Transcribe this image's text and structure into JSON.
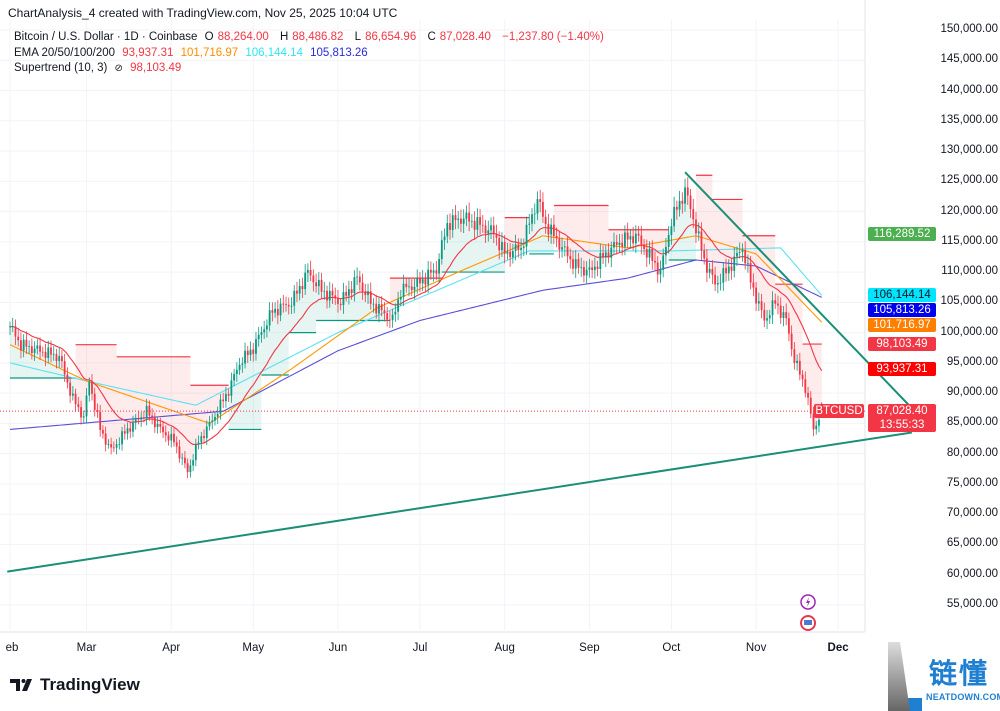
{
  "header": {
    "title": "ChartAnalysis_4 created with TradingView.com, Nov 25, 2025 10:04 UTC"
  },
  "legend": {
    "symbol": "Bitcoin / U.S. Dollar · 1D · Coinbase",
    "open_label": "O",
    "open": "88,264.00",
    "high_label": "H",
    "high": "88,486.82",
    "low_label": "L",
    "low": "86,654.96",
    "close_label": "C",
    "close": "87,028.40",
    "change": "−1,237.80 (−1.40%)",
    "ema_label": "EMA 20/50/100/200",
    "ema20": "93,937.31",
    "ema50": "101,716.97",
    "ema100": "106,144.14",
    "ema200": "105,813.26",
    "supertrend_label": "Supertrend (10, 3)",
    "supertrend_icon": "hidden-eye-icon",
    "supertrend": "98,103.49"
  },
  "price_axis": {
    "ticks": [
      "150,000.00",
      "145,000.00",
      "140,000.00",
      "135,000.00",
      "130,000.00",
      "125,000.00",
      "120,000.00",
      "115,000.00",
      "110,000.00",
      "105,000.00",
      "100,000.00",
      "95,000.00",
      "90,000.00",
      "85,000.00",
      "80,000.00",
      "75,000.00",
      "70,000.00",
      "65,000.00",
      "60,000.00",
      "55,000.00"
    ],
    "tags": [
      {
        "label": "116,289.52",
        "value": 116289.52,
        "color": "#4caf50"
      },
      {
        "label": "106,144.14",
        "value": 106144.14,
        "color": "#00e5ff",
        "text": "#131722"
      },
      {
        "label": "105,813.26",
        "value": 105813.26,
        "color": "#0000ee"
      },
      {
        "label": "101,716.97",
        "value": 101716.97,
        "color": "#ff7f00"
      },
      {
        "label": "98,103.49",
        "value": 98103.49,
        "color": "#f23645"
      },
      {
        "label": "93,937.31",
        "value": 93937.31,
        "color": "#ff0000"
      }
    ],
    "last": {
      "symbol": "BTCUSD",
      "price": "87,028.40",
      "value": 87028.4,
      "countdown": "13:55:33",
      "color": "#f23645"
    }
  },
  "time_axis": {
    "months": [
      {
        "label": "eb",
        "date": "2025-02-01"
      },
      {
        "label": "Mar",
        "date": "2025-03-01"
      },
      {
        "label": "Apr",
        "date": "2025-04-01"
      },
      {
        "label": "May",
        "date": "2025-05-01"
      },
      {
        "label": "Jun",
        "date": "2025-06-01"
      },
      {
        "label": "Jul",
        "date": "2025-07-01"
      },
      {
        "label": "Aug",
        "date": "2025-08-01"
      },
      {
        "label": "Sep",
        "date": "2025-09-01"
      },
      {
        "label": "Oct",
        "date": "2025-10-01"
      },
      {
        "label": "Nov",
        "date": "2025-11-01"
      },
      {
        "label": "Dec",
        "date": "2025-12-01"
      }
    ]
  },
  "footer": {
    "brand": "TradingView",
    "brand_icon": "tradingview-logo-icon"
  },
  "watermark": {
    "text": "链懂",
    "sub": "NEATDOWN.COM"
  },
  "event_icons": [
    "lightning-event-icon",
    "us-flag-event-icon"
  ],
  "colors": {
    "up": "#089981",
    "down": "#f23645",
    "ema20": "#f23645",
    "ema50": "#ff9800",
    "ema100": "#5ce1f0",
    "ema200": "#5b4fd6",
    "trend": "#1a8f75"
  },
  "chart_data": {
    "type": "candlestick",
    "symbol": "BTCUSD",
    "interval": "1D",
    "ylim": [
      52000,
      152000
    ],
    "closes": [
      [
        "2025-02-01",
        101000
      ],
      [
        "2025-02-05",
        98000
      ],
      [
        "2025-02-12",
        97000
      ],
      [
        "2025-02-19",
        96000
      ],
      [
        "2025-02-24",
        89000
      ],
      [
        "2025-02-28",
        86000
      ],
      [
        "2025-03-02",
        92000
      ],
      [
        "2025-03-06",
        84000
      ],
      [
        "2025-03-10",
        80500
      ],
      [
        "2025-03-16",
        84000
      ],
      [
        "2025-03-23",
        87000
      ],
      [
        "2025-03-28",
        84000
      ],
      [
        "2025-04-02",
        82000
      ],
      [
        "2025-04-07",
        77000
      ],
      [
        "2025-04-11",
        82000
      ],
      [
        "2025-04-16",
        85500
      ],
      [
        "2025-04-22",
        90500
      ],
      [
        "2025-04-26",
        95000
      ],
      [
        "2025-05-01",
        97500
      ],
      [
        "2025-05-08",
        103500
      ],
      [
        "2025-05-15",
        105000
      ],
      [
        "2025-05-21",
        110000
      ],
      [
        "2025-05-26",
        107000
      ],
      [
        "2025-06-02",
        105000
      ],
      [
        "2025-06-08",
        109000
      ],
      [
        "2025-06-13",
        105000
      ],
      [
        "2025-06-21",
        102000
      ],
      [
        "2025-06-24",
        107000
      ],
      [
        "2025-06-30",
        108000
      ],
      [
        "2025-07-07",
        110500
      ],
      [
        "2025-07-11",
        118000
      ],
      [
        "2025-07-17",
        119000
      ],
      [
        "2025-07-22",
        118000
      ],
      [
        "2025-07-28",
        116500
      ],
      [
        "2025-08-01",
        113000
      ],
      [
        "2025-08-07",
        114000
      ],
      [
        "2025-08-13",
        122000
      ],
      [
        "2025-08-16",
        118000
      ],
      [
        "2025-08-22",
        114000
      ],
      [
        "2025-08-27",
        111000
      ],
      [
        "2025-09-01",
        110000
      ],
      [
        "2025-09-07",
        113000
      ],
      [
        "2025-09-12",
        115000
      ],
      [
        "2025-09-18",
        116000
      ],
      [
        "2025-09-24",
        112000
      ],
      [
        "2025-09-27",
        110000
      ],
      [
        "2025-10-01",
        118500
      ],
      [
        "2025-10-06",
        123500
      ],
      [
        "2025-10-09",
        119000
      ],
      [
        "2025-10-13",
        112000
      ],
      [
        "2025-10-17",
        108000
      ],
      [
        "2025-10-21",
        110000
      ],
      [
        "2025-10-27",
        114000
      ],
      [
        "2025-10-30",
        108500
      ],
      [
        "2025-11-04",
        102000
      ],
      [
        "2025-11-08",
        105000
      ],
      [
        "2025-11-12",
        102000
      ],
      [
        "2025-11-15",
        95500
      ],
      [
        "2025-11-19",
        91000
      ],
      [
        "2025-11-22",
        84000
      ],
      [
        "2025-11-25",
        87028.4
      ]
    ],
    "last_candle": {
      "date": "2025-11-25",
      "open": 88264.0,
      "high": 88486.82,
      "low": 86654.96,
      "close": 87028.4
    },
    "ema50": [
      [
        "2025-02-01",
        98000
      ],
      [
        "2025-03-01",
        92000
      ],
      [
        "2025-04-15",
        85000
      ],
      [
        "2025-05-15",
        94000
      ],
      [
        "2025-06-15",
        104000
      ],
      [
        "2025-07-15",
        110000
      ],
      [
        "2025-08-15",
        116000
      ],
      [
        "2025-09-15",
        114000
      ],
      [
        "2025-10-10",
        116000
      ],
      [
        "2025-11-01",
        113000
      ],
      [
        "2025-11-25",
        101716.97
      ]
    ],
    "ema100": [
      [
        "2025-02-01",
        95000
      ],
      [
        "2025-03-01",
        92000
      ],
      [
        "2025-04-10",
        88000
      ],
      [
        "2025-06-01",
        100000
      ],
      [
        "2025-08-10",
        113500
      ],
      [
        "2025-10-01",
        113500
      ],
      [
        "2025-11-10",
        114000
      ],
      [
        "2025-11-25",
        106144.14
      ]
    ],
    "ema200": [
      [
        "2025-02-01",
        84000
      ],
      [
        "2025-04-20",
        87000
      ],
      [
        "2025-06-01",
        97000
      ],
      [
        "2025-07-01",
        102000
      ],
      [
        "2025-08-15",
        107000
      ],
      [
        "2025-09-15",
        109000
      ],
      [
        "2025-10-10",
        112000
      ],
      [
        "2025-11-01",
        111000
      ],
      [
        "2025-11-25",
        105813.26
      ]
    ],
    "supertrend": [
      {
        "from": "2025-02-01",
        "to": "2025-02-25",
        "level": 92500,
        "dir": "up"
      },
      {
        "from": "2025-02-25",
        "to": "2025-03-12",
        "level": 98000,
        "dir": "down"
      },
      {
        "from": "2025-03-12",
        "to": "2025-04-08",
        "level": 96000,
        "dir": "down"
      },
      {
        "from": "2025-04-08",
        "to": "2025-04-22",
        "level": 91300,
        "dir": "down"
      },
      {
        "from": "2025-04-22",
        "to": "2025-05-04",
        "level": 84000,
        "dir": "up"
      },
      {
        "from": "2025-05-04",
        "to": "2025-05-14",
        "level": 93000,
        "dir": "up"
      },
      {
        "from": "2025-05-14",
        "to": "2025-05-24",
        "level": 100000,
        "dir": "up"
      },
      {
        "from": "2025-05-24",
        "to": "2025-06-20",
        "level": 102000,
        "dir": "up"
      },
      {
        "from": "2025-06-20",
        "to": "2025-07-09",
        "level": 109000,
        "dir": "down"
      },
      {
        "from": "2025-07-09",
        "to": "2025-08-01",
        "level": 110000,
        "dir": "up"
      },
      {
        "from": "2025-08-01",
        "to": "2025-08-10",
        "level": 119000,
        "dir": "down"
      },
      {
        "from": "2025-08-10",
        "to": "2025-08-19",
        "level": 113000,
        "dir": "up"
      },
      {
        "from": "2025-08-19",
        "to": "2025-09-08",
        "level": 121000,
        "dir": "down"
      },
      {
        "from": "2025-09-08",
        "to": "2025-09-30",
        "level": 117000,
        "dir": "down"
      },
      {
        "from": "2025-09-30",
        "to": "2025-10-10",
        "level": 112000,
        "dir": "up"
      },
      {
        "from": "2025-10-10",
        "to": "2025-10-16",
        "level": 126000,
        "dir": "down"
      },
      {
        "from": "2025-10-16",
        "to": "2025-10-27",
        "level": 122000,
        "dir": "down"
      },
      {
        "from": "2025-10-27",
        "to": "2025-11-08",
        "level": 116000,
        "dir": "down"
      },
      {
        "from": "2025-11-08",
        "to": "2025-11-18",
        "level": 108000,
        "dir": "down"
      },
      {
        "from": "2025-11-18",
        "to": "2025-11-25",
        "level": 98103.49,
        "dir": "down"
      }
    ],
    "trendlines": [
      {
        "from": [
          "2025-10-06",
          126500
        ],
        "to": [
          "2025-12-28",
          87500
        ]
      },
      {
        "from": [
          "2025-01-31",
          60500
        ],
        "to": [
          "2025-12-28",
          83500
        ]
      }
    ],
    "last_price_line": 87028.4
  }
}
